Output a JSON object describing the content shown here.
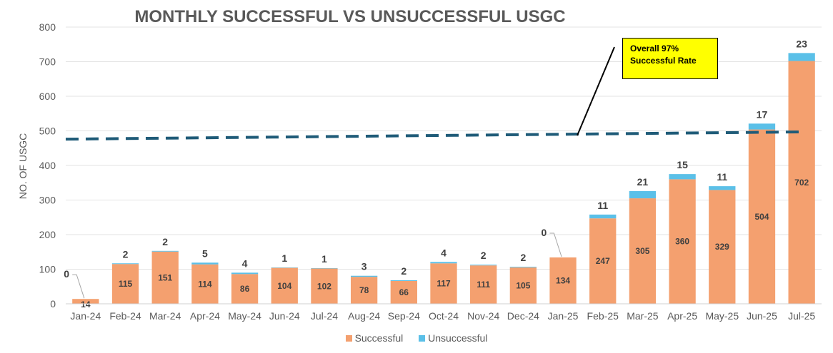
{
  "chart_data": {
    "type": "bar",
    "stacked": true,
    "title": "MONTHLY SUCCESSFUL VS UNSUCCESSFUL USGC",
    "xlabel": "",
    "ylabel": "NO. OF USGC",
    "ylim": [
      0,
      800
    ],
    "yticks": [
      0,
      100,
      200,
      300,
      400,
      500,
      600,
      700,
      800
    ],
    "grid": true,
    "legend_position": "bottom",
    "categories": [
      "Jan-24",
      "Feb-24",
      "Mar-24",
      "Apr-24",
      "May-24",
      "Jun-24",
      "Jul-24",
      "Aug-24",
      "Sep-24",
      "Oct-24",
      "Nov-24",
      "Dec-24",
      "Jan-25",
      "Feb-25",
      "Mar-25",
      "Apr-25",
      "May-25",
      "Jun-25",
      "Jul-25"
    ],
    "series": [
      {
        "name": "Successful",
        "color": "#f4a06f",
        "values": [
          14,
          115,
          151,
          114,
          86,
          104,
          102,
          78,
          66,
          117,
          111,
          105,
          134,
          247,
          305,
          360,
          329,
          504,
          702
        ]
      },
      {
        "name": "Unsuccessful",
        "color": "#5bc0e8",
        "values": [
          0,
          2,
          2,
          5,
          4,
          1,
          1,
          3,
          2,
          4,
          2,
          2,
          0,
          11,
          21,
          15,
          11,
          17,
          23
        ]
      }
    ],
    "trendline": {
      "style": "dashed",
      "color": "#1f5b78",
      "start_value": 476,
      "end_value": 497
    },
    "annotation": {
      "lines": [
        "Overall 97%",
        "Successful Rate"
      ],
      "background": "#ffff00"
    }
  }
}
